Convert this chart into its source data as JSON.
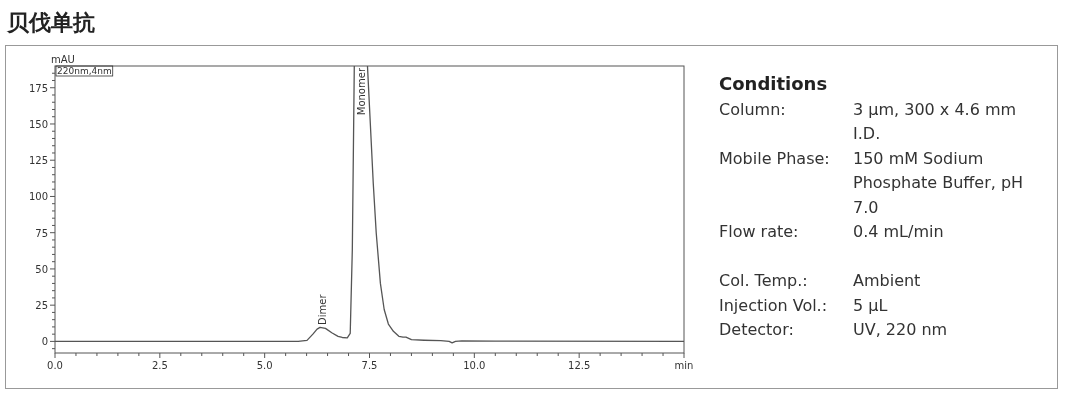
{
  "chart_data": [
    {
      "type": "line",
      "title": "贝伐单抗",
      "ylabel": "mAU",
      "x": [
        0,
        5.8,
        6.01,
        6.15,
        6.25,
        6.32,
        6.45,
        6.6,
        6.75,
        6.85,
        6.97,
        7.04,
        7.09,
        7.13,
        7.3,
        7.52,
        7.59,
        7.66,
        7.76,
        7.85,
        7.95,
        8.07,
        8.2,
        8.3,
        8.37,
        8.5,
        8.8,
        9.2,
        9.4,
        9.47,
        9.55,
        9.7,
        10.5,
        15
      ],
      "series": [
        {
          "color": "#555555",
          "values": [
            0,
            0,
            0.7,
            5,
            8.5,
            9.7,
            9,
            6,
            3.5,
            2.7,
            2.5,
            5.5,
            63,
            170,
            null,
            150,
            109,
            75,
            40,
            22,
            12,
            7,
            3.5,
            3,
            3,
            1.2,
            0.8,
            0.5,
            0,
            -1,
            0,
            0.3,
            0.2,
            0
          ]
        }
      ],
      "annotations": [
        "220nm,4nm",
        {
          "text": "Dimer",
          "x": 6.4,
          "y": 10
        },
        "Monomer"
      ],
      "xlim": [
        0,
        15
      ],
      "ylim": [
        -8,
        190
      ],
      "xticks": [
        {
          "value": 0,
          "label": "0.0"
        },
        {
          "value": 0.5,
          "label": null
        },
        {
          "value": 1,
          "label": null
        },
        {
          "value": 1.5,
          "label": null
        },
        {
          "value": 2,
          "label": null
        },
        {
          "value": 2.5,
          "label": "2.5"
        },
        {
          "value": 3,
          "label": null
        },
        {
          "value": 3.5,
          "label": null
        },
        {
          "value": 4,
          "label": null
        },
        {
          "value": 4.5,
          "label": null
        },
        {
          "value": 5,
          "label": "5.0"
        },
        {
          "value": 5.5,
          "label": null
        },
        {
          "value": 6,
          "label": null
        },
        {
          "value": 6.5,
          "label": null
        },
        {
          "value": 7,
          "label": null
        },
        {
          "value": 7.5,
          "label": "7.5"
        },
        {
          "value": 8,
          "label": null
        },
        {
          "value": 8.5,
          "label": null
        },
        {
          "value": 9,
          "label": null
        },
        {
          "value": 9.5,
          "label": null
        },
        {
          "value": 10,
          "label": "10.0"
        },
        {
          "value": 10.5,
          "label": null
        },
        {
          "value": 11,
          "label": null
        },
        {
          "value": 11.5,
          "label": null
        },
        {
          "value": 12,
          "label": null
        },
        {
          "value": 12.5,
          "label": "12.5"
        },
        {
          "value": 13,
          "label": null
        },
        {
          "value": 13.5,
          "label": null
        },
        {
          "value": 14,
          "label": null
        },
        {
          "value": 14.5,
          "label": null
        },
        {
          "value": 15,
          "label": "min"
        }
      ],
      "yticks": [
        {
          "value": -5,
          "label": null
        },
        0,
        {
          "value": 5,
          "label": null
        },
        {
          "value": 10,
          "label": null
        },
        {
          "value": 15,
          "label": null
        },
        {
          "value": 20,
          "label": null
        },
        25,
        {
          "value": 30,
          "label": null
        },
        {
          "value": 35,
          "label": null
        },
        {
          "value": 40,
          "label": null
        },
        {
          "value": 45,
          "label": null
        },
        50,
        {
          "value": 55,
          "label": null
        },
        {
          "value": 60,
          "label": null
        },
        {
          "value": 65,
          "label": null
        },
        {
          "value": 70,
          "label": null
        },
        75,
        {
          "value": 80,
          "label": null
        },
        {
          "value": 85,
          "label": null
        },
        {
          "value": 90,
          "label": null
        },
        {
          "value": 95,
          "label": null
        },
        100,
        {
          "value": 105,
          "label": null
        },
        {
          "value": 110,
          "label": null
        },
        {
          "value": 115,
          "label": null
        },
        {
          "value": 120,
          "label": null
        },
        125,
        {
          "value": 130,
          "label": null
        },
        {
          "value": 135,
          "label": null
        },
        {
          "value": 140,
          "label": null
        },
        {
          "value": 145,
          "label": null
        },
        150,
        {
          "value": 155,
          "label": null
        },
        {
          "value": 160,
          "label": null
        },
        {
          "value": 165,
          "label": null
        },
        {
          "value": 170,
          "label": null
        },
        175,
        {
          "value": 180,
          "label": null
        },
        {
          "value": 185,
          "label": null
        }
      ]
    },
    {
      "type": "other",
      "title": "Conditions",
      "annotations": [
        "Column:",
        "3 µm, 300 x 4.6 mm I.D.",
        "Mobile Phase:",
        "150 mM Sodium Phosphate Buffer, pH 7.0",
        "Flow rate:",
        "0.4 mL/min",
        "Col. Temp.:",
        "Ambient",
        "Injection Vol.:",
        "5 µL",
        "Detector:",
        "UV, 220 nm"
      ]
    }
  ]
}
